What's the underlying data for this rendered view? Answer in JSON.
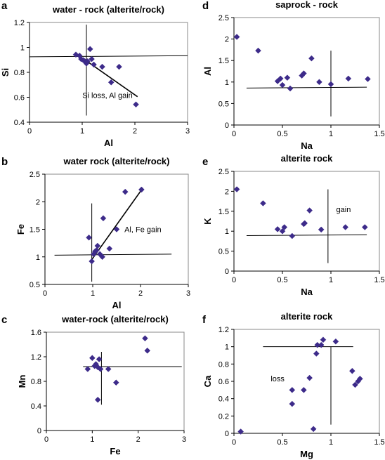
{
  "colors": {
    "marker": "#3d2b8a",
    "axis": "#000000"
  },
  "chart_data": [
    {
      "panel_label": "a",
      "type": "scatter",
      "title": "water - rock (alterite/rock)",
      "xlabel": "Al",
      "ylabel": "Si",
      "xlim": [
        0,
        3
      ],
      "ylim": [
        0.4,
        1.3
      ],
      "xticks": [
        "0",
        "1",
        "2",
        "3"
      ],
      "yticks": [
        "0.4",
        "0.6",
        "0.8",
        "1",
        "1.2"
      ],
      "grid": false,
      "points": [
        [
          0.88,
          1.01
        ],
        [
          0.95,
          1.0
        ],
        [
          0.98,
          0.97
        ],
        [
          1.02,
          0.96
        ],
        [
          1.05,
          0.95
        ],
        [
          1.08,
          0.93
        ],
        [
          1.1,
          0.95
        ],
        [
          1.15,
          1.06
        ],
        [
          1.18,
          0.97
        ],
        [
          1.22,
          0.92
        ],
        [
          1.38,
          0.9
        ],
        [
          1.55,
          0.76
        ],
        [
          1.7,
          0.9
        ],
        [
          2.02,
          0.56
        ]
      ],
      "lines": [
        [
          [
            0,
            0.99
          ],
          [
            3,
            1.0
          ]
        ],
        [
          [
            1.08,
            0.46
          ],
          [
            1.08,
            1.28
          ]
        ],
        [
          [
            0.88,
            1.02
          ],
          [
            2.05,
            0.63
          ]
        ]
      ],
      "annotation": {
        "text": "Si loss, Al gain",
        "x": 1.48,
        "y": 0.62
      }
    },
    {
      "panel_label": "b",
      "type": "scatter",
      "title": "water rock (alterite/rock)",
      "xlabel": "Al",
      "ylabel": "Fe",
      "xlim": [
        0,
        3
      ],
      "ylim": [
        0.5,
        2.5
      ],
      "xticks": [
        "0",
        "1",
        "2",
        "3"
      ],
      "yticks": [
        "0.5",
        "1",
        "1.5",
        "2",
        "2.5"
      ],
      "grid": false,
      "points": [
        [
          0.92,
          1.35
        ],
        [
          0.98,
          0.92
        ],
        [
          1.02,
          1.05
        ],
        [
          1.05,
          1.1
        ],
        [
          1.08,
          1.12
        ],
        [
          1.1,
          1.2
        ],
        [
          1.15,
          1.05
        ],
        [
          1.2,
          1.0
        ],
        [
          1.22,
          1.7
        ],
        [
          1.35,
          1.15
        ],
        [
          1.5,
          1.5
        ],
        [
          1.68,
          2.18
        ],
        [
          2.02,
          2.22
        ]
      ],
      "lines": [
        [
          [
            0.2,
            1.03
          ],
          [
            2.65,
            1.05
          ]
        ],
        [
          [
            0.98,
            0.55
          ],
          [
            0.98,
            1.97
          ]
        ],
        [
          [
            0.98,
            0.95
          ],
          [
            2.05,
            2.25
          ]
        ]
      ],
      "annotation": {
        "text": "Al, Fe gain",
        "x": 2.05,
        "y": 1.45
      }
    },
    {
      "panel_label": "c",
      "type": "scatter",
      "title": "water-rock (alterite/rock)",
      "xlabel": "Fe",
      "ylabel": "Mn",
      "xlim": [
        0,
        3
      ],
      "ylim": [
        0,
        1.6
      ],
      "xticks": [
        "0",
        "1",
        "2",
        "3"
      ],
      "yticks": [
        "0",
        "0.4",
        "0.8",
        "1.2",
        "1.6"
      ],
      "grid": false,
      "points": [
        [
          0.9,
          1.0
        ],
        [
          1.0,
          1.18
        ],
        [
          1.05,
          1.05
        ],
        [
          1.08,
          1.08
        ],
        [
          1.12,
          1.03
        ],
        [
          1.15,
          1.16
        ],
        [
          1.18,
          1.0
        ],
        [
          1.35,
          1.0
        ],
        [
          1.52,
          0.78
        ],
        [
          1.12,
          0.5
        ],
        [
          2.15,
          1.5
        ],
        [
          2.2,
          1.3
        ]
      ],
      "lines": [
        [
          [
            0.8,
            1.04
          ],
          [
            2.95,
            1.04
          ]
        ],
        [
          [
            1.2,
            0.42
          ],
          [
            1.2,
            1.28
          ]
        ]
      ],
      "annotation": null
    },
    {
      "panel_label": "d",
      "type": "scatter",
      "title": "saprock - rock",
      "xlabel": "Na",
      "ylabel": "Al",
      "xlim": [
        0,
        1.5
      ],
      "ylim": [
        0,
        2.5
      ],
      "xticks": [
        "0",
        "0.5",
        "1",
        "1.5"
      ],
      "yticks": [
        "0",
        "0.5",
        "1",
        "1.5",
        "2",
        "2.5"
      ],
      "grid": false,
      "points": [
        [
          0.03,
          2.05
        ],
        [
          0.25,
          1.73
        ],
        [
          0.45,
          1.02
        ],
        [
          0.48,
          1.08
        ],
        [
          0.5,
          0.93
        ],
        [
          0.55,
          1.1
        ],
        [
          0.58,
          0.85
        ],
        [
          0.7,
          1.15
        ],
        [
          0.72,
          1.2
        ],
        [
          0.8,
          1.55
        ],
        [
          0.88,
          1.0
        ],
        [
          1.0,
          0.95
        ],
        [
          1.18,
          1.08
        ],
        [
          1.38,
          1.07
        ]
      ],
      "lines": [
        [
          [
            0.13,
            0.86
          ],
          [
            1.37,
            0.88
          ]
        ],
        [
          [
            1.0,
            0.2
          ],
          [
            1.0,
            1.73
          ]
        ]
      ],
      "annotation": null
    },
    {
      "panel_label": "e",
      "type": "scatter",
      "title": "alterite rock",
      "xlabel": "Na",
      "ylabel": "K",
      "xlim": [
        0,
        1.5
      ],
      "ylim": [
        0,
        2.5
      ],
      "xticks": [
        "0",
        "0.5",
        "1",
        "1.5"
      ],
      "yticks": [
        "0",
        "0.5",
        "1",
        "1.5",
        "2",
        "2.5"
      ],
      "grid": false,
      "points": [
        [
          0.03,
          2.05
        ],
        [
          0.3,
          1.7
        ],
        [
          0.45,
          1.05
        ],
        [
          0.5,
          1.0
        ],
        [
          0.52,
          1.1
        ],
        [
          0.6,
          0.88
        ],
        [
          0.72,
          1.18
        ],
        [
          0.73,
          1.2
        ],
        [
          0.78,
          1.52
        ],
        [
          0.9,
          1.04
        ],
        [
          1.15,
          1.1
        ],
        [
          1.35,
          1.1
        ]
      ],
      "lines": [
        [
          [
            0.13,
            0.89
          ],
          [
            1.37,
            0.91
          ]
        ],
        [
          [
            0.97,
            0.2
          ],
          [
            0.97,
            2.05
          ]
        ]
      ],
      "annotation": {
        "text": "gain",
        "x": 1.13,
        "y": 1.48
      }
    },
    {
      "panel_label": "f",
      "type": "scatter",
      "title": "alterite rock",
      "xlabel": "Mg",
      "ylabel": "Ca",
      "xlim": [
        0,
        1.5
      ],
      "ylim": [
        0,
        1.2
      ],
      "xticks": [
        "0",
        "0.5",
        "1",
        "1.5"
      ],
      "yticks": [
        "0",
        "0.2",
        "0.4",
        "0.6",
        "0.8",
        "1",
        "1.2"
      ],
      "grid": false,
      "points": [
        [
          0.07,
          0.02
        ],
        [
          0.6,
          0.34
        ],
        [
          0.6,
          0.5
        ],
        [
          0.72,
          0.5
        ],
        [
          0.78,
          0.64
        ],
        [
          0.82,
          0.05
        ],
        [
          0.85,
          0.92
        ],
        [
          0.86,
          1.02
        ],
        [
          0.9,
          1.02
        ],
        [
          0.92,
          1.08
        ],
        [
          1.05,
          1.06
        ],
        [
          1.22,
          0.72
        ],
        [
          1.25,
          0.56
        ],
        [
          1.28,
          0.6
        ],
        [
          1.3,
          0.63
        ]
      ],
      "lines": [
        [
          [
            0.3,
            1.0
          ],
          [
            1.23,
            1.0
          ]
        ],
        [
          [
            1.0,
            0.1
          ],
          [
            1.0,
            1.0
          ]
        ]
      ],
      "annotation": {
        "text": "loss",
        "x": 0.45,
        "y": 0.6
      }
    }
  ]
}
